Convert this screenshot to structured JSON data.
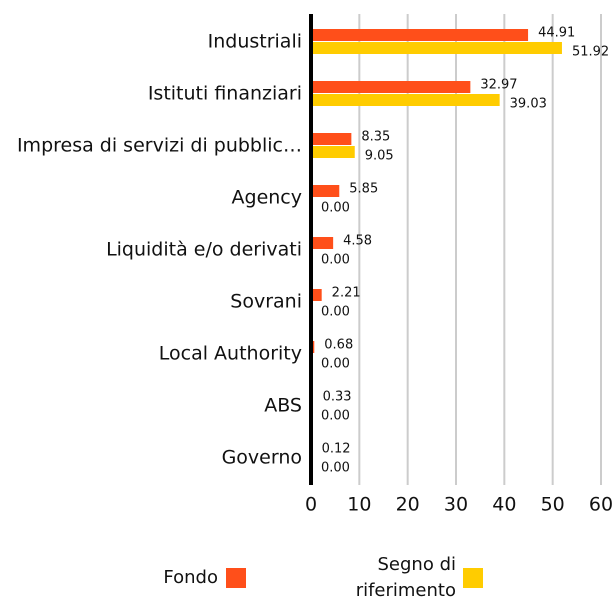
{
  "chart_data": {
    "type": "hbar",
    "categories": [
      "Industriali",
      "Istituti finanziari",
      "Impresa di servizi di pubblic…",
      "Agency",
      "Liquidità e/o derivati",
      "Sovrani",
      "Local Authority",
      "ABS",
      "Governo"
    ],
    "series": [
      {
        "name": "Fondo",
        "color": "#ff4f1a",
        "values": [
          44.91,
          32.97,
          8.35,
          5.85,
          4.58,
          2.21,
          0.68,
          0.33,
          0.12
        ],
        "value_labels": [
          "44.91",
          "32.97",
          "8.35",
          "5.85",
          "4.58",
          "2.21",
          "0.68",
          "0.33",
          "0.12"
        ]
      },
      {
        "name": "Segno di riferimento",
        "color": "#ffcc00",
        "values": [
          51.92,
          39.03,
          9.05,
          0,
          0,
          0,
          0,
          0,
          0
        ],
        "value_labels": [
          "51.92",
          "39.03",
          "9.05",
          "0.00",
          "0.00",
          "0.00",
          "0.00",
          "0.00",
          "0.00"
        ]
      }
    ],
    "xlim": [
      0,
      60
    ],
    "xticks": [
      0,
      10,
      20,
      30,
      40,
      50,
      60
    ],
    "grid": true
  }
}
